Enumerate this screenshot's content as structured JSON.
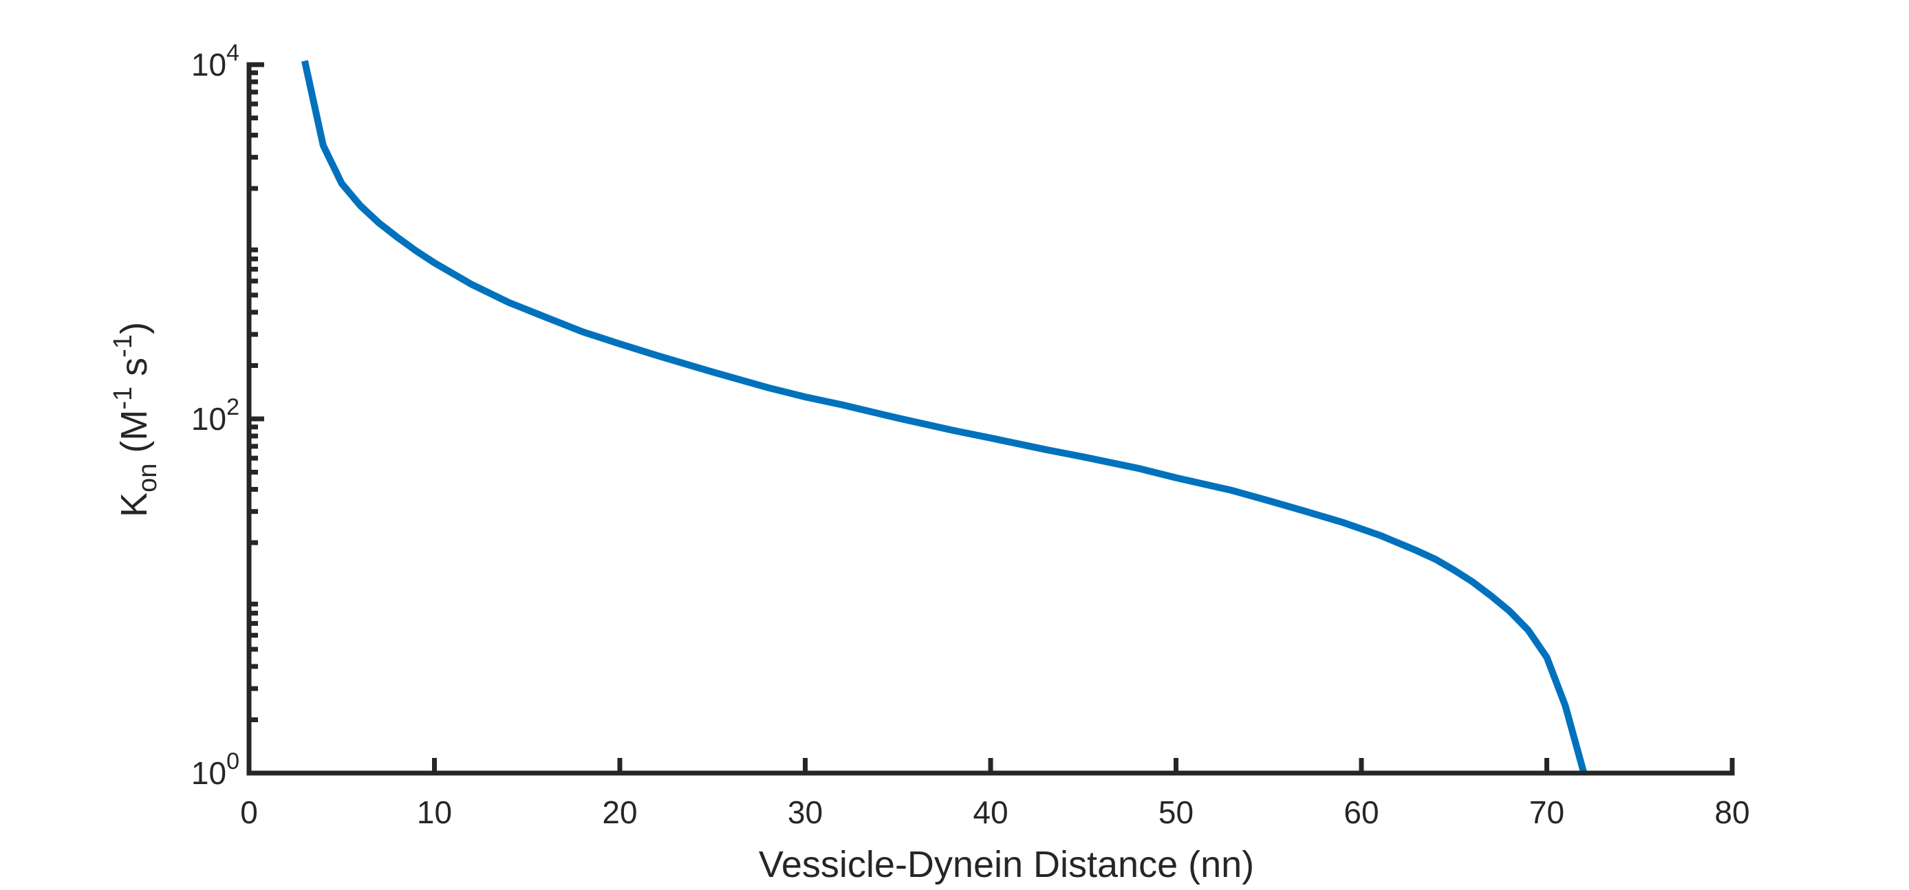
{
  "chart_data": {
    "type": "line",
    "title": "",
    "xlabel": "Vessicle-Dynein Distance (nn)",
    "ylabel": {
      "main": "K",
      "sub": "on",
      "open": " (M",
      "sup1": "-1",
      "mid": " s",
      "sup2": "-1",
      "close": ")"
    },
    "xlim": [
      0,
      80
    ],
    "ylim": [
      1,
      10000
    ],
    "yscale": "log",
    "grid": false,
    "xticks": [
      "0",
      "10",
      "20",
      "30",
      "40",
      "50",
      "60",
      "70",
      "80"
    ],
    "yticks": [
      {
        "base": "10",
        "exp": "0"
      },
      {
        "base": "10",
        "exp": "2"
      },
      {
        "base": "10",
        "exp": "4"
      }
    ],
    "series": [
      {
        "color": "#0072BD",
        "x": [
          3,
          4,
          5,
          6,
          7,
          8,
          9,
          10,
          12,
          14,
          16,
          18,
          20,
          22,
          25,
          28,
          30,
          32,
          35,
          38,
          40,
          43,
          45,
          48,
          50,
          53,
          55,
          57,
          59,
          61,
          63,
          64,
          65,
          66,
          67,
          68,
          69,
          70,
          71,
          72
        ],
        "y": [
          10500,
          3500,
          2130,
          1600,
          1280,
          1060,
          890,
          760,
          575,
          455,
          375,
          310,
          265,
          228,
          184,
          150,
          133,
          120,
          101,
          86,
          78,
          67,
          61,
          52.5,
          46.5,
          39.5,
          34.5,
          30,
          26,
          22,
          18,
          16.1,
          14,
          12,
          10,
          8.2,
          6.4,
          4.5,
          2.4,
          1
        ]
      }
    ]
  }
}
